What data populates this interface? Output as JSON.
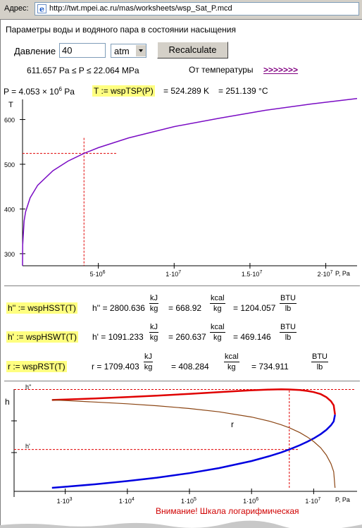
{
  "browser": {
    "address_label": "Адрес:",
    "url": "http://twt.mpei.ac.ru/mas/worksheets/wsp_Sat_P.mcd"
  },
  "header": {
    "title": "Параметры воды и водяного пара в состоянии насыщения"
  },
  "controls": {
    "pressure_label": "Давление",
    "pressure_value": "40",
    "unit_selected": "atm",
    "recalc_label": "Recalculate",
    "range_text": "611.657 Pa ≤ P ≤ 22.064 MPa",
    "from_temp_label": "От температуры",
    "from_temp_link": ">>>>>>>"
  },
  "result": {
    "p_prefix": "P = 4.053 × 10",
    "p_exp": "6",
    "p_unit": " Pa",
    "t_formula": "T := wspTSP(P)",
    "t_k": "= 524.289 K",
    "t_c": "= 251.139 °C"
  },
  "chart_data": [
    {
      "type": "line",
      "ylabel": "T",
      "xlabel": "P, Pa",
      "x_ticks": [
        "5·10",
        "1·10",
        "1.5·10",
        "2·10"
      ],
      "x_tick_exps": [
        "6",
        "7",
        "7",
        "7"
      ],
      "y_ticks": [
        "300",
        "400",
        "500",
        "600"
      ],
      "xlim": [
        0,
        22064000
      ],
      "ylim": [
        273,
        645
      ],
      "series": [
        {
          "color": "#7a0cc4",
          "x": [
            611.657,
            10000,
            100000,
            200000,
            500000,
            1000000,
            2000000,
            3000000,
            4053000,
            5000000,
            7000000,
            10000000,
            13000000,
            16000000,
            19000000,
            22064000
          ],
          "y": [
            273.16,
            319,
            372.8,
            393.4,
            425,
            453,
            485.5,
            507,
            524.3,
            537.1,
            559,
            584.2,
            603,
            620.5,
            634.6,
            647.1
          ]
        }
      ],
      "marker": {
        "x": 4053000,
        "y": 524.289
      }
    },
    {
      "type": "line",
      "ylabel": "h",
      "xlabel": "P, Pa",
      "x_scale": "log",
      "x_ticks": [
        "1·10",
        "1·10",
        "1·10",
        "1·10",
        "1·10"
      ],
      "x_tick_exps": [
        "3",
        "4",
        "5",
        "6",
        "7"
      ],
      "labels": {
        "h_vap": "h''",
        "h_liq": "h'",
        "r": "r"
      },
      "note": "Внимание! Шкала логарифмическая",
      "xlim": [
        150,
        50000000
      ],
      "ylim": [
        0,
        2850
      ],
      "series": [
        {
          "color": "#e00000",
          "x": [
            611.657,
            1000,
            3000,
            10000,
            30000,
            100000,
            300000,
            1000000,
            2000000,
            3000000,
            4053000,
            6000000,
            8000000,
            10000000,
            13000000,
            16000000,
            19000000,
            21000000,
            22064000
          ],
          "y": [
            2500.9,
            2513.7,
            2544.3,
            2583.9,
            2624.6,
            2674.9,
            2724.9,
            2777.1,
            2798.4,
            2803.2,
            2800.6,
            2784.6,
            2757.7,
            2725.5,
            2667,
            2581,
            2466,
            2350,
            2084
          ]
        },
        {
          "color": "#0000e0",
          "x": [
            611.657,
            1000,
            3000,
            10000,
            30000,
            100000,
            300000,
            1000000,
            2000000,
            3000000,
            4053000,
            6000000,
            8000000,
            10000000,
            13000000,
            16000000,
            19000000,
            21000000,
            22064000
          ],
          "y": [
            0,
            29.3,
            101,
            191.8,
            289.2,
            417.5,
            561.5,
            762.7,
            908.5,
            1008.3,
            1091.2,
            1213.4,
            1317,
            1407.9,
            1530,
            1650,
            1780,
            1890,
            2084
          ]
        },
        {
          "color": "#8b4513",
          "x": [
            611.657,
            1000,
            3000,
            10000,
            30000,
            100000,
            300000,
            1000000,
            2000000,
            3000000,
            4053000,
            6000000,
            8000000,
            10000000,
            13000000,
            16000000,
            19000000,
            21000000,
            22064000
          ],
          "y": [
            2500.9,
            2484.4,
            2443.3,
            2392.1,
            2335.4,
            2257.4,
            2163.4,
            2014.4,
            1889.9,
            1794.9,
            1709.4,
            1571.2,
            1440.7,
            1317.6,
            1137,
            931,
            686,
            460,
            0
          ]
        }
      ],
      "marker": {
        "x": 4053000,
        "h_vap": 2800.636,
        "h_liq": 1091.233
      }
    }
  ],
  "props": [
    {
      "formula": "h'' := wspHSST(T)",
      "lhs": "h'' = 2800.636",
      "u1_num": "kJ",
      "u1_den": "kg",
      "v2": "= 668.92",
      "u2_num": "kcal",
      "u2_den": "kg",
      "v3": "= 1204.057",
      "u3_num": "BTU",
      "u3_den": "lb"
    },
    {
      "formula": "h' := wspHSWT(T)",
      "lhs": "h' = 1091.233",
      "u1_num": "kJ",
      "u1_den": "kg",
      "v2": "= 260.637",
      "u2_num": "kcal",
      "u2_den": "kg",
      "v3": "= 469.146",
      "u3_num": "BTU",
      "u3_den": "lb"
    },
    {
      "formula": "r := wspRST(T)",
      "lhs": "r = 1709.403",
      "u1_num": "kJ",
      "u1_den": "kg",
      "v2": "= 408.284",
      "u2_num": "kcal",
      "u2_den": "kg",
      "v3": "= 734.911",
      "u3_num": "BTU",
      "u3_den": "lb"
    }
  ]
}
